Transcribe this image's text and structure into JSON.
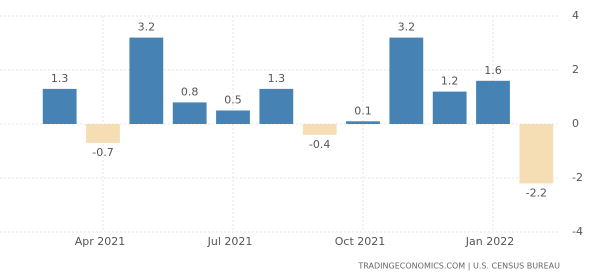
{
  "chart_data": {
    "type": "bar",
    "categories": [
      null,
      "Apr 2021",
      null,
      null,
      "Jul 2021",
      null,
      null,
      "Oct 2021",
      null,
      null,
      "Jan 2022",
      null
    ],
    "values": [
      1.3,
      -0.7,
      3.2,
      0.8,
      0.5,
      1.3,
      -0.4,
      0.1,
      3.2,
      1.2,
      1.6,
      -2.2
    ],
    "color": "#4682b4",
    "negative_color": "#f5deb3",
    "ylim": [
      -4,
      4
    ],
    "yticks": [
      -4,
      -2,
      0,
      2,
      4
    ],
    "grid": true,
    "source": "TRADINGECONOMICS.COM | U.S. CENSUS BUREAU"
  }
}
